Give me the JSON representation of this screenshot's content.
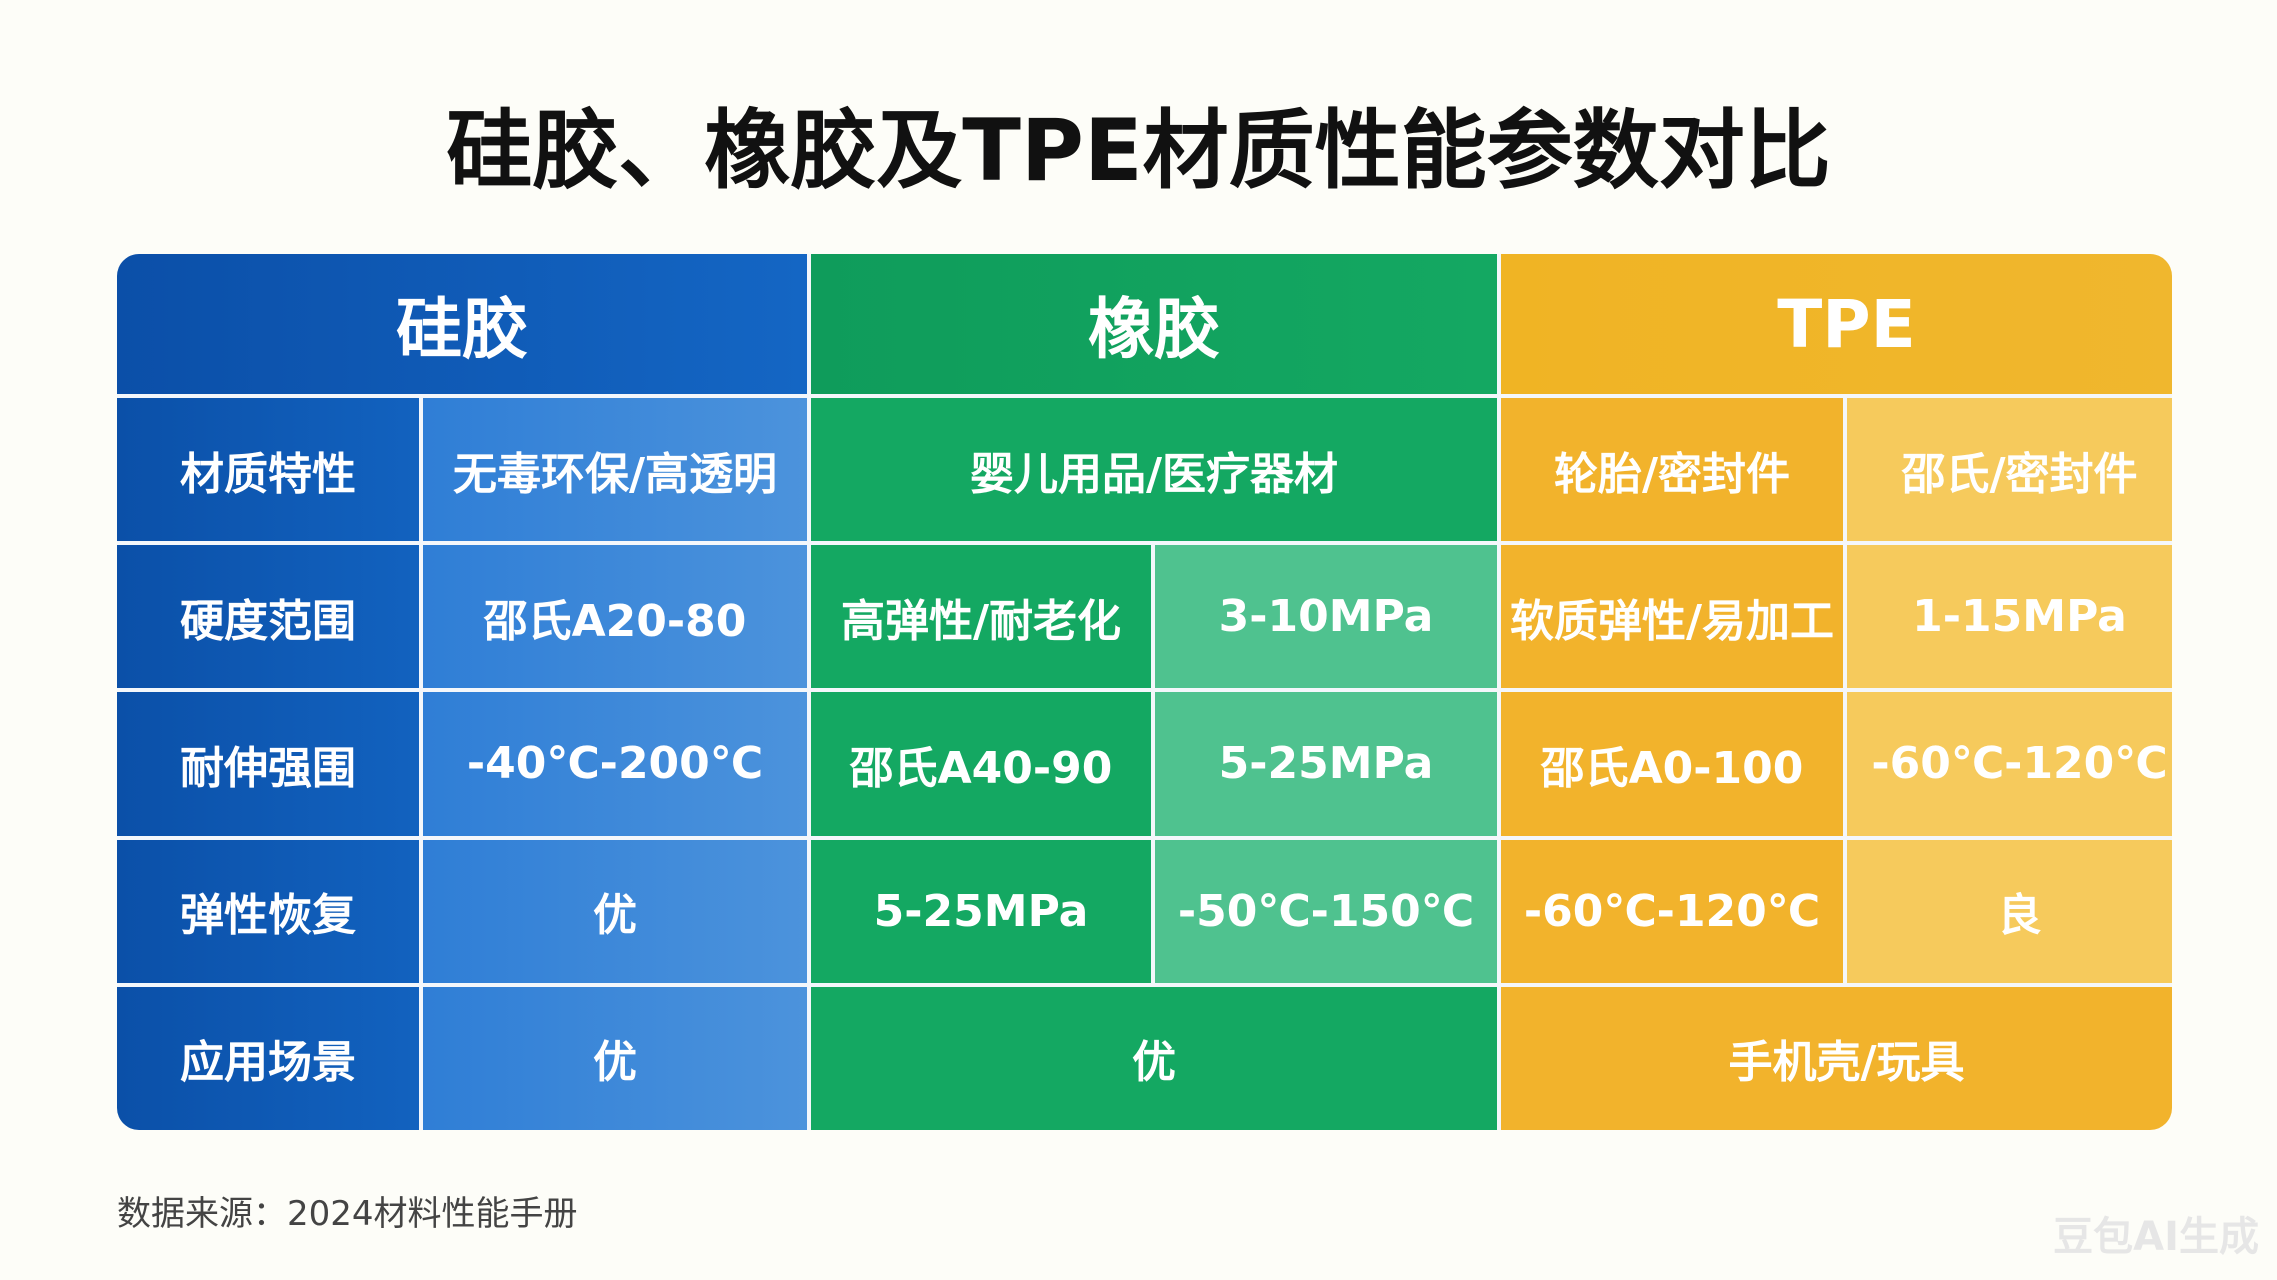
{
  "title": "硅胶、橡胶及TPE材质性能参数对比",
  "table": {
    "headers": [
      "硅胶",
      "橡胶",
      "TPE"
    ],
    "rows": [
      {
        "label": "材质特性",
        "cells": [
          [
            "无毒环保/高透明"
          ],
          [
            "婴儿用品/医疗器材"
          ],
          [
            "轮胎/密封件",
            "邵氏/密封件"
          ]
        ]
      },
      {
        "label": "硬度范围",
        "cells": [
          [
            "邵氏A20-80"
          ],
          [
            "高弹性/耐老化",
            "3-10MPa"
          ],
          [
            "软质弹性/易加工",
            "1-15MPa"
          ]
        ]
      },
      {
        "label": "耐伸强围",
        "cells": [
          [
            "-40℃-200℃"
          ],
          [
            "邵氏A40-90",
            "5-25MPa"
          ],
          [
            "邵氏A0-100",
            "-60℃-120℃"
          ]
        ]
      },
      {
        "label": "弹性恢复",
        "cells": [
          [
            "优"
          ],
          [
            "5-25MPa",
            "-50℃-150℃"
          ],
          [
            "-60℃-120℃",
            "良"
          ]
        ]
      },
      {
        "label": "应用场景",
        "cells": [
          [
            "优"
          ],
          [
            "优"
          ],
          [
            "手机壳/玩具"
          ]
        ]
      }
    ]
  },
  "source": "数据来源：2024材料性能手册",
  "watermark": "豆包AI生成"
}
